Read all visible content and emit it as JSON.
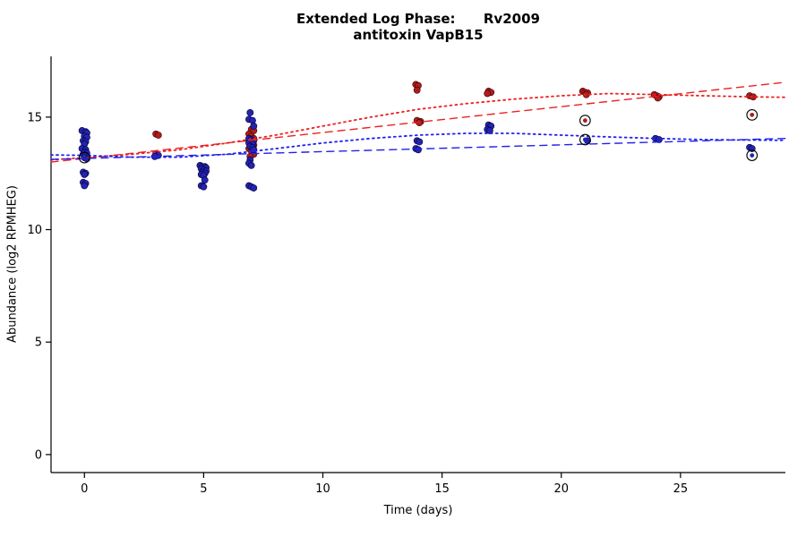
{
  "chart_data": {
    "type": "scatter",
    "title_lines": [
      "Extended Log Phase:      Rv2009",
      "antitoxin VapB15"
    ],
    "xlabel": "Time  (days)",
    "ylabel": "Abundance  (log2 RPMHEG)",
    "xlim": [
      -1.4,
      29.4
    ],
    "ylim": [
      -0.8,
      17.7
    ],
    "xticks": [
      0,
      5,
      10,
      15,
      20,
      25
    ],
    "yticks": [
      0,
      5,
      10,
      15
    ],
    "grid": false,
    "legend": "none",
    "point_colors": {
      "red": "#b01c1c",
      "blue": "#2424ad"
    },
    "line_colors": {
      "red": "#ee2020",
      "blue": "#2020ee"
    },
    "series": [
      {
        "name": "red-points",
        "color": "#b01c1c",
        "edge": "#3a0000",
        "points": [
          [
            3,
            14.25
          ],
          [
            3.1,
            14.2
          ],
          [
            5,
            12.7
          ],
          [
            7,
            14.45
          ],
          [
            7.1,
            14.4
          ],
          [
            6.9,
            14.25
          ],
          [
            7,
            14.15
          ],
          [
            7.1,
            14.05
          ],
          [
            6.9,
            13.95
          ],
          [
            7.05,
            13.85
          ],
          [
            7.1,
            13.75
          ],
          [
            6.9,
            13.6
          ],
          [
            7,
            13.5
          ],
          [
            7.1,
            13.35
          ],
          [
            6.95,
            13.25
          ],
          [
            13.9,
            16.45
          ],
          [
            14,
            16.4
          ],
          [
            13.95,
            16.2
          ],
          [
            13.95,
            14.85
          ],
          [
            14.1,
            14.8
          ],
          [
            14.05,
            14.75
          ],
          [
            16.95,
            16.15
          ],
          [
            17.05,
            16.1
          ],
          [
            16.9,
            16.05
          ],
          [
            20.9,
            16.15
          ],
          [
            21,
            16.1
          ],
          [
            21.1,
            16.08
          ],
          [
            21.05,
            16.0
          ],
          [
            23.9,
            16.0
          ],
          [
            24,
            15.95
          ],
          [
            24.1,
            15.9
          ],
          [
            24.05,
            15.85
          ],
          [
            27.9,
            15.95
          ],
          [
            28.05,
            15.9
          ]
        ]
      },
      {
        "name": "blue-points",
        "color": "#2424ad",
        "edge": "#000040",
        "points": [
          [
            -0.1,
            14.4
          ],
          [
            0.05,
            14.35
          ],
          [
            0.1,
            14.3
          ],
          [
            0,
            14.15
          ],
          [
            0.1,
            14.1
          ],
          [
            -0.05,
            13.95
          ],
          [
            0.05,
            13.9
          ],
          [
            0,
            13.8
          ],
          [
            -0.1,
            13.6
          ],
          [
            0.05,
            13.55
          ],
          [
            0,
            13.45
          ],
          [
            0.1,
            13.4
          ],
          [
            -0.05,
            13.35
          ],
          [
            0.05,
            13.3
          ],
          [
            0,
            13.2
          ],
          [
            0.1,
            13.15
          ],
          [
            -0.05,
            12.55
          ],
          [
            0.05,
            12.5
          ],
          [
            0,
            12.45
          ],
          [
            -0.05,
            12.1
          ],
          [
            0.05,
            12.05
          ],
          [
            0,
            11.95
          ],
          [
            3,
            13.35
          ],
          [
            3.1,
            13.3
          ],
          [
            2.95,
            13.25
          ],
          [
            4.85,
            12.85
          ],
          [
            4.95,
            12.8
          ],
          [
            5.05,
            12.8
          ],
          [
            5.1,
            12.75
          ],
          [
            4.9,
            12.7
          ],
          [
            5,
            12.65
          ],
          [
            5.1,
            12.6
          ],
          [
            4.95,
            12.55
          ],
          [
            5.05,
            12.5
          ],
          [
            4.9,
            12.45
          ],
          [
            5,
            12.4
          ],
          [
            5.05,
            12.2
          ],
          [
            4.9,
            11.95
          ],
          [
            5,
            11.9
          ],
          [
            6.95,
            15.2
          ],
          [
            6.9,
            14.9
          ],
          [
            7.05,
            14.85
          ],
          [
            7.1,
            14.6
          ],
          [
            6.9,
            14.05
          ],
          [
            7,
            14.0
          ],
          [
            7.1,
            13.95
          ],
          [
            6.9,
            13.85
          ],
          [
            7.05,
            13.8
          ],
          [
            6.95,
            13.7
          ],
          [
            7.05,
            13.65
          ],
          [
            7.1,
            13.55
          ],
          [
            6.95,
            13.1
          ],
          [
            6.9,
            12.95
          ],
          [
            7,
            12.85
          ],
          [
            6.9,
            11.95
          ],
          [
            7,
            11.9
          ],
          [
            7.1,
            11.85
          ],
          [
            13.95,
            13.95
          ],
          [
            14.05,
            13.9
          ],
          [
            13.9,
            13.6
          ],
          [
            14,
            13.55
          ],
          [
            16.95,
            14.65
          ],
          [
            17.05,
            14.6
          ],
          [
            16.9,
            14.45
          ],
          [
            17,
            14.4
          ],
          [
            21.1,
            13.95
          ],
          [
            23.95,
            14.05
          ],
          [
            24.1,
            14.0
          ],
          [
            27.9,
            13.65
          ],
          [
            28,
            13.6
          ]
        ]
      }
    ],
    "circled_points": [
      {
        "x": 0,
        "y": 13.2,
        "color": "#2424ad"
      },
      {
        "x": 21,
        "y": 14.85,
        "color": "#b01c1c"
      },
      {
        "x": 21,
        "y": 14.0,
        "color": "#2424ad"
      },
      {
        "x": 28,
        "y": 15.1,
        "color": "#b01c1c"
      },
      {
        "x": 28,
        "y": 13.3,
        "color": "#2424ad"
      }
    ],
    "lines": [
      {
        "name": "red-loess-dotted",
        "color": "#ee2020",
        "dash": "2 4",
        "width": 1.8,
        "points": [
          [
            -1.4,
            13.1
          ],
          [
            0,
            13.2
          ],
          [
            2,
            13.35
          ],
          [
            4,
            13.55
          ],
          [
            6,
            13.85
          ],
          [
            8,
            14.2
          ],
          [
            10,
            14.6
          ],
          [
            12,
            15.0
          ],
          [
            14,
            15.35
          ],
          [
            16,
            15.6
          ],
          [
            18,
            15.8
          ],
          [
            20,
            15.95
          ],
          [
            22,
            16.05
          ],
          [
            24,
            16.0
          ],
          [
            26,
            15.95
          ],
          [
            28,
            15.9
          ],
          [
            29.4,
            15.88
          ]
        ]
      },
      {
        "name": "red-linear-dashed",
        "color": "#ee2020",
        "dash": "8 6",
        "width": 1.4,
        "points": [
          [
            -1.4,
            13.0
          ],
          [
            29.4,
            16.55
          ]
        ]
      },
      {
        "name": "blue-loess-dotted",
        "color": "#2020ee",
        "dash": "2 4",
        "width": 1.8,
        "points": [
          [
            -1.4,
            13.32
          ],
          [
            0,
            13.3
          ],
          [
            2,
            13.22
          ],
          [
            4,
            13.22
          ],
          [
            6,
            13.35
          ],
          [
            8,
            13.6
          ],
          [
            10,
            13.85
          ],
          [
            12,
            14.05
          ],
          [
            14,
            14.2
          ],
          [
            16,
            14.28
          ],
          [
            18,
            14.28
          ],
          [
            20,
            14.2
          ],
          [
            22,
            14.12
          ],
          [
            24,
            14.05
          ],
          [
            26,
            14.0
          ],
          [
            28,
            13.98
          ],
          [
            29.4,
            13.97
          ]
        ]
      },
      {
        "name": "blue-linear-dashed",
        "color": "#2020ee",
        "dash": "8 6",
        "width": 1.4,
        "points": [
          [
            -1.4,
            13.12
          ],
          [
            29.4,
            14.05
          ]
        ]
      }
    ]
  }
}
